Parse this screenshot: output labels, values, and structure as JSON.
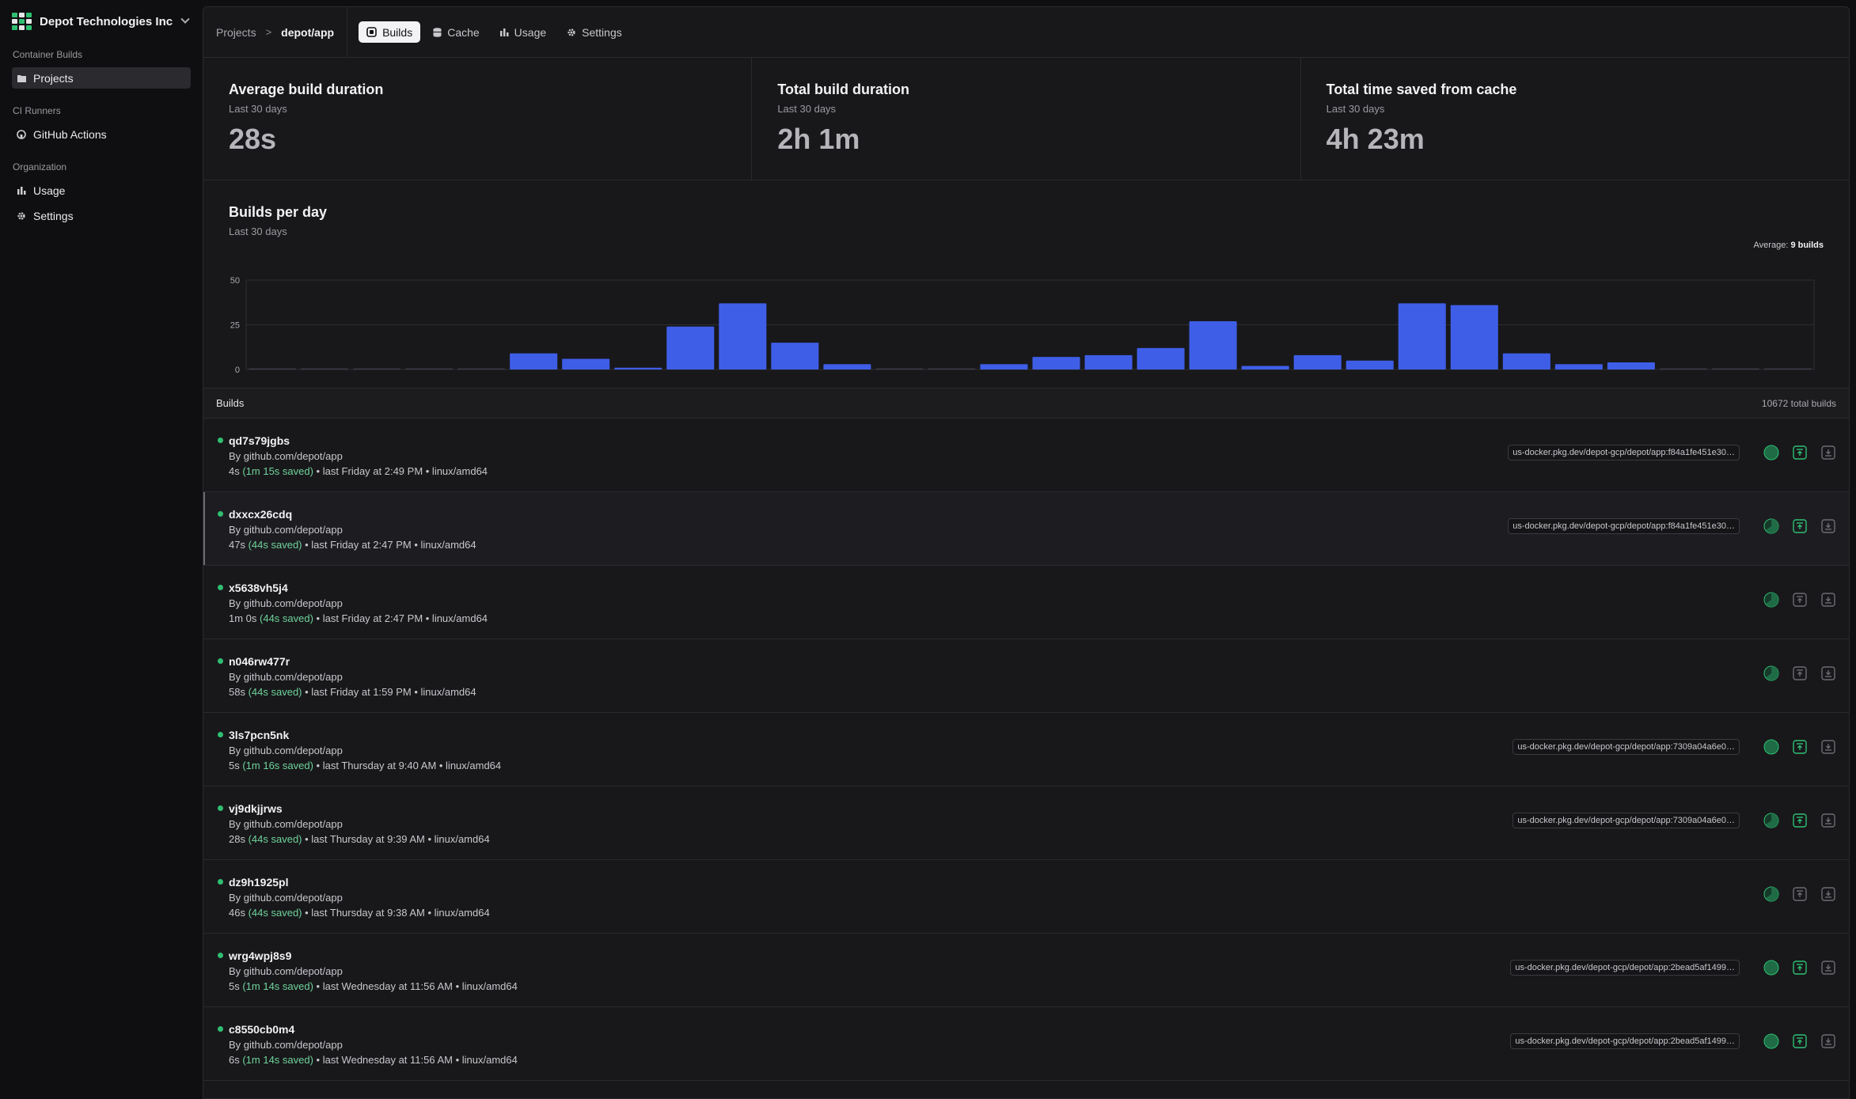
{
  "org": {
    "name": "Depot Technologies Inc"
  },
  "sidebar": {
    "sections": [
      {
        "title": "Container Builds",
        "items": [
          {
            "label": "Projects",
            "icon": "folder-icon",
            "active": true
          }
        ]
      },
      {
        "title": "CI Runners",
        "items": [
          {
            "label": "GitHub Actions",
            "icon": "github-icon",
            "active": false
          }
        ]
      },
      {
        "title": "Organization",
        "items": [
          {
            "label": "Usage",
            "icon": "bar-chart-icon",
            "active": false
          },
          {
            "label": "Settings",
            "icon": "gear-icon",
            "active": false
          }
        ]
      }
    ]
  },
  "breadcrumb": {
    "root": "Projects",
    "separator": ">",
    "current": "depot/app"
  },
  "tabs": [
    {
      "label": "Builds",
      "icon": "builds-icon",
      "active": true
    },
    {
      "label": "Cache",
      "icon": "database-icon",
      "active": false
    },
    {
      "label": "Usage",
      "icon": "bar-chart-icon",
      "active": false
    },
    {
      "label": "Settings",
      "icon": "gear-icon",
      "active": false
    }
  ],
  "stats": [
    {
      "title": "Average build duration",
      "sub": "Last 30 days",
      "value": "28s"
    },
    {
      "title": "Total build duration",
      "sub": "Last 30 days",
      "value": "2h 1m"
    },
    {
      "title": "Total time saved from cache",
      "sub": "Last 30 days",
      "value": "4h 23m"
    }
  ],
  "chart": {
    "title": "Builds per day",
    "sub": "Last 30 days",
    "average_label": "Average:",
    "average_value": "9 builds"
  },
  "chart_data": {
    "type": "bar",
    "title": "Builds per day",
    "yticks": [
      0,
      25,
      50
    ],
    "ylim": [
      0,
      50
    ],
    "grid": true,
    "values": [
      0,
      0,
      0,
      0,
      0,
      9,
      6,
      1,
      24,
      37,
      15,
      3,
      0,
      0,
      3,
      7,
      8,
      12,
      27,
      2,
      8,
      5,
      37,
      36,
      9,
      3,
      4,
      0,
      0,
      0
    ],
    "color": "#3f5ee8"
  },
  "builds": {
    "label": "Builds",
    "total": "10672 total builds",
    "items": [
      {
        "id": "qd7s79jgbs",
        "by": "By github.com/depot/app",
        "dur": "4s",
        "saved": "(1m 15s saved)",
        "rest": "• last Friday at 2:49 PM • linux/amd64",
        "image": "us-docker.pkg.dev/depot-gcp/depot/app:f84a1fe451e30…",
        "full": true,
        "push": true
      },
      {
        "id": "dxxcx26cdq",
        "by": "By github.com/depot/app",
        "dur": "47s",
        "saved": "(44s saved)",
        "rest": "• last Friday at 2:47 PM • linux/amd64",
        "image": "us-docker.pkg.dev/depot-gcp/depot/app:f84a1fe451e30…",
        "full": false,
        "push": true,
        "highlight": true
      },
      {
        "id": "x5638vh5j4",
        "by": "By github.com/depot/app",
        "dur": "1m 0s",
        "saved": "(44s saved)",
        "rest": "• last Friday at 2:47 PM • linux/amd64",
        "image": "",
        "full": false,
        "push": false
      },
      {
        "id": "n046rw477r",
        "by": "By github.com/depot/app",
        "dur": "58s",
        "saved": "(44s saved)",
        "rest": "• last Friday at 1:59 PM • linux/amd64",
        "image": "",
        "full": false,
        "push": false
      },
      {
        "id": "3ls7pcn5nk",
        "by": "By github.com/depot/app",
        "dur": "5s",
        "saved": "(1m 16s saved)",
        "rest": "• last Thursday at 9:40 AM • linux/amd64",
        "image": "us-docker.pkg.dev/depot-gcp/depot/app:7309a04a6e0…",
        "full": true,
        "push": true
      },
      {
        "id": "vj9dkjjrws",
        "by": "By github.com/depot/app",
        "dur": "28s",
        "saved": "(44s saved)",
        "rest": "• last Thursday at 9:39 AM • linux/amd64",
        "image": "us-docker.pkg.dev/depot-gcp/depot/app:7309a04a6e0…",
        "full": false,
        "push": true
      },
      {
        "id": "dz9h1925pl",
        "by": "By github.com/depot/app",
        "dur": "46s",
        "saved": "(44s saved)",
        "rest": "• last Thursday at 9:38 AM • linux/amd64",
        "image": "",
        "full": false,
        "push": false
      },
      {
        "id": "wrg4wpj8s9",
        "by": "By github.com/depot/app",
        "dur": "5s",
        "saved": "(1m 14s saved)",
        "rest": "• last Wednesday at 11:56 AM • linux/amd64",
        "image": "us-docker.pkg.dev/depot-gcp/depot/app:2bead5af1499…",
        "full": true,
        "push": true
      },
      {
        "id": "c8550cb0m4",
        "by": "By github.com/depot/app",
        "dur": "6s",
        "saved": "(1m 14s saved)",
        "rest": "• last Wednesday at 11:56 AM • linux/amd64",
        "image": "us-docker.pkg.dev/depot-gcp/depot/app:2bead5af1499…",
        "full": true,
        "push": true
      }
    ]
  }
}
